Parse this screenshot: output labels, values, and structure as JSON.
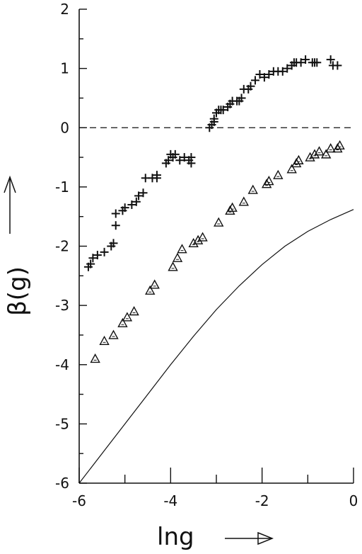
{
  "chart_data": {
    "type": "scatter",
    "title": "",
    "xlabel": "lng",
    "ylabel": "β(g)",
    "xlim": [
      -6,
      0
    ],
    "ylim": [
      -6,
      2
    ],
    "xticks": [
      -6,
      -4,
      -2,
      0
    ],
    "xtick_labels": [
      "-6",
      "-4",
      "-2",
      "0"
    ],
    "yticks": [
      2,
      1,
      0,
      -1,
      -2,
      -3,
      -4,
      -5,
      -6
    ],
    "ytick_labels": [
      "2",
      "1",
      "0",
      "-1",
      "-2",
      "-3",
      "-4",
      "-5",
      "-6"
    ],
    "grid": false,
    "reference_line": {
      "y": 0,
      "style": "dashed"
    },
    "series": [
      {
        "marker": "plus",
        "x": [
          -5.8,
          -5.75,
          -5.7,
          -5.6,
          -5.45,
          -5.3,
          -5.25,
          -5.2,
          -5.2,
          -5.05,
          -5.0,
          -4.85,
          -4.75,
          -4.7,
          -4.6,
          -4.55,
          -4.4,
          -4.3,
          -4.3,
          -4.1,
          -4.05,
          -4.0,
          -3.95,
          -3.9,
          -3.8,
          -3.7,
          -3.6,
          -3.55,
          -3.55,
          -3.15,
          -3.1,
          -3.05,
          -3.05,
          -3.0,
          -2.95,
          -2.9,
          -2.85,
          -2.75,
          -2.7,
          -2.65,
          -2.55,
          -2.5,
          -2.45,
          -2.4,
          -2.3,
          -2.25,
          -2.15,
          -2.05,
          -1.95,
          -1.85,
          -1.75,
          -1.65,
          -1.55,
          -1.45,
          -1.35,
          -1.3,
          -1.25,
          -1.15,
          -1.05,
          -0.9,
          -0.85,
          -0.8,
          -0.5,
          -0.45,
          -0.35
        ],
        "y": [
          -2.35,
          -2.3,
          -2.2,
          -2.15,
          -2.1,
          -2.0,
          -1.95,
          -1.65,
          -1.45,
          -1.4,
          -1.35,
          -1.3,
          -1.25,
          -1.15,
          -1.1,
          -0.85,
          -0.85,
          -0.8,
          -0.85,
          -0.6,
          -0.55,
          -0.45,
          -0.5,
          -0.45,
          -0.55,
          -0.5,
          -0.55,
          -0.5,
          -0.6,
          0.0,
          0.05,
          0.1,
          0.15,
          0.25,
          0.3,
          0.3,
          0.3,
          0.35,
          0.4,
          0.45,
          0.45,
          0.45,
          0.5,
          0.65,
          0.65,
          0.7,
          0.8,
          0.9,
          0.85,
          0.9,
          0.95,
          0.95,
          0.95,
          1.0,
          1.05,
          1.1,
          1.1,
          1.1,
          1.15,
          1.1,
          1.1,
          1.1,
          1.15,
          1.05,
          1.05
        ]
      },
      {
        "marker": "triangle",
        "x": [
          -5.65,
          -5.45,
          -5.25,
          -5.05,
          -4.95,
          -4.8,
          -4.45,
          -4.35,
          -3.95,
          -3.85,
          -3.75,
          -3.5,
          -3.4,
          -3.3,
          -2.95,
          -2.7,
          -2.65,
          -2.4,
          -2.2,
          -1.9,
          -1.85,
          -1.65,
          -1.35,
          -1.25,
          -1.2,
          -0.95,
          -0.85,
          -0.75,
          -0.6,
          -0.5,
          -0.35,
          -0.3
        ],
        "y": [
          -3.9,
          -3.6,
          -3.5,
          -3.3,
          -3.2,
          -3.1,
          -2.75,
          -2.65,
          -2.35,
          -2.2,
          -2.05,
          -1.95,
          -1.9,
          -1.85,
          -1.6,
          -1.4,
          -1.35,
          -1.25,
          -1.05,
          -0.95,
          -0.9,
          -0.8,
          -0.7,
          -0.6,
          -0.55,
          -0.5,
          -0.45,
          -0.4,
          -0.45,
          -0.35,
          -0.35,
          -0.3
        ]
      },
      {
        "marker": "none",
        "line": "solid",
        "x": [
          -6.0,
          -5.5,
          -5.0,
          -4.5,
          -4.0,
          -3.5,
          -3.0,
          -2.5,
          -2.0,
          -1.5,
          -1.0,
          -0.5,
          0.0
        ],
        "y": [
          -6.0,
          -5.5,
          -5.0,
          -4.5,
          -4.0,
          -3.52,
          -3.07,
          -2.67,
          -2.31,
          -2.0,
          -1.75,
          -1.55,
          -1.38
        ]
      }
    ]
  }
}
